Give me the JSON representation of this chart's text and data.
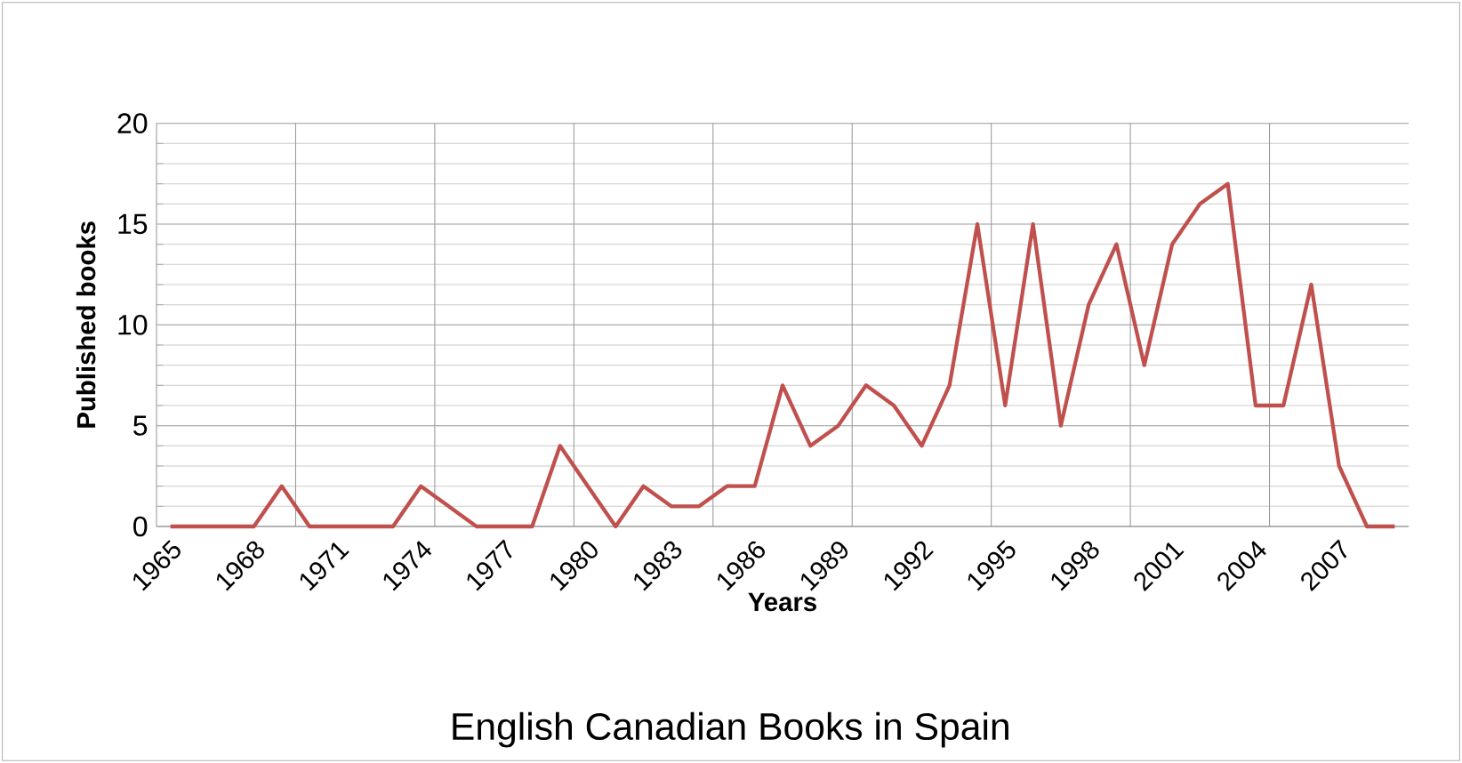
{
  "chart_data": {
    "type": "line",
    "title": "English Canadian Books in Spain",
    "xlabel": "Years",
    "ylabel": "Published books",
    "categories": [
      "1965",
      null,
      null,
      "1968",
      null,
      null,
      "1971",
      null,
      null,
      "1974",
      null,
      null,
      "1977",
      null,
      null,
      "1980",
      null,
      null,
      "1983",
      null,
      null,
      "1986",
      null,
      null,
      "1989",
      null,
      null,
      "1992",
      null,
      null,
      "1995",
      null,
      null,
      "1998",
      null,
      null,
      "2001",
      null,
      null,
      "2004",
      null,
      null,
      "2007",
      null,
      null
    ],
    "series": [
      {
        "color": "#c0504d",
        "values": [
          0,
          0,
          0,
          0,
          2,
          0,
          0,
          0,
          0,
          2,
          1,
          0,
          0,
          0,
          4,
          2,
          0,
          2,
          1,
          1,
          2,
          2,
          7,
          4,
          5,
          7,
          6,
          4,
          7,
          15,
          6,
          15,
          5,
          11,
          14,
          8,
          14,
          16,
          17,
          6,
          6,
          12,
          3,
          0,
          0
        ]
      }
    ],
    "ylim": [
      0,
      20
    ],
    "yticks": [
      0,
      5,
      10,
      15,
      20
    ],
    "grid": true,
    "marker": "none",
    "line_style": "solid"
  }
}
